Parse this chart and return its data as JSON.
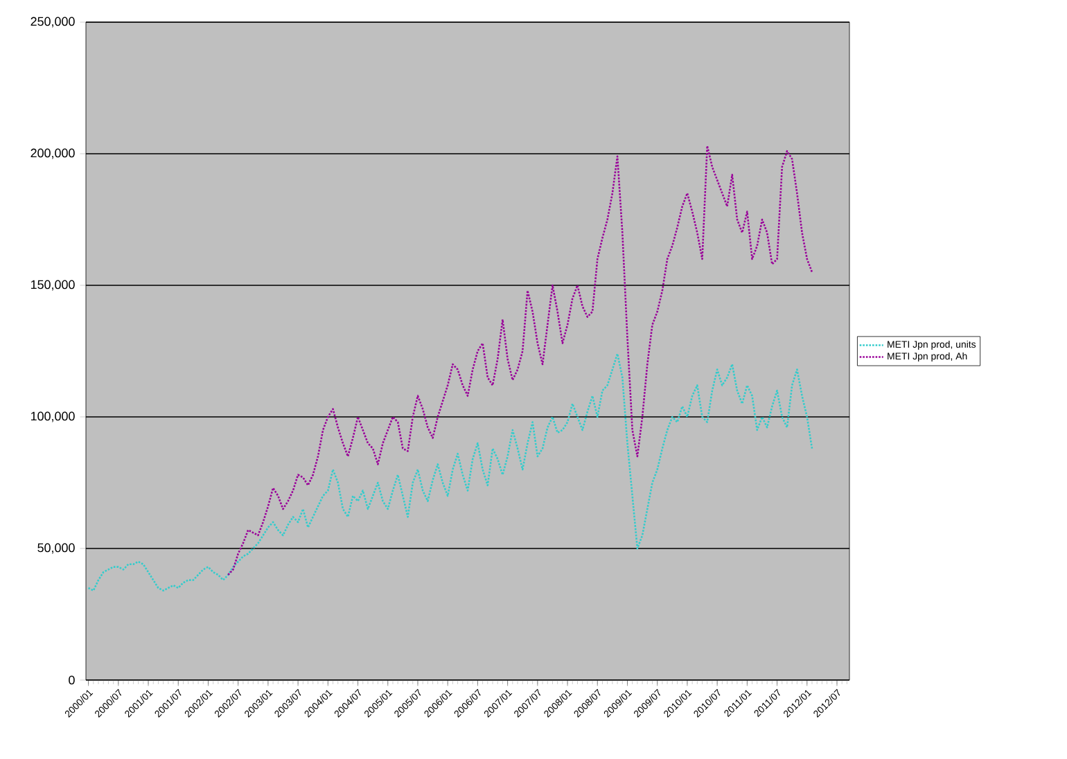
{
  "chart_data": {
    "type": "line",
    "categories": [
      "2000/01",
      null,
      null,
      null,
      null,
      null,
      "2000/07",
      null,
      null,
      null,
      null,
      null,
      "2001/01",
      null,
      null,
      null,
      null,
      null,
      "2001/07",
      null,
      null,
      null,
      null,
      null,
      "2002/01",
      null,
      null,
      null,
      null,
      null,
      "2002/07",
      null,
      null,
      null,
      null,
      null,
      "2003/01",
      null,
      null,
      null,
      null,
      null,
      "2003/07",
      null,
      null,
      null,
      null,
      null,
      "2004/01",
      null,
      null,
      null,
      null,
      null,
      "2004/07",
      null,
      null,
      null,
      null,
      null,
      "2005/01",
      null,
      null,
      null,
      null,
      null,
      "2005/07",
      null,
      null,
      null,
      null,
      null,
      "2006/01",
      null,
      null,
      null,
      null,
      null,
      "2006/07",
      null,
      null,
      null,
      null,
      null,
      "2007/01",
      null,
      null,
      null,
      null,
      null,
      "2007/07",
      null,
      null,
      null,
      null,
      null,
      "2008/01",
      null,
      null,
      null,
      null,
      null,
      "2008/07",
      null,
      null,
      null,
      null,
      null,
      "2009/01",
      null,
      null,
      null,
      null,
      null,
      "2009/07",
      null,
      null,
      null,
      null,
      null,
      "2010/01",
      null,
      null,
      null,
      null,
      null,
      "2010/07",
      null,
      null,
      null,
      null,
      null,
      "2011/01",
      null,
      null,
      null,
      null,
      null,
      "2011/07",
      null,
      null,
      null,
      null,
      null,
      "2012/01",
      null,
      null,
      null,
      null,
      null,
      "2012/07",
      null,
      null
    ],
    "series": [
      {
        "name": "METI Jpn prod, units",
        "color": "#33cccc",
        "values": [
          35000,
          34000,
          38000,
          41000,
          42000,
          43000,
          43000,
          42000,
          44000,
          44000,
          45000,
          44000,
          41000,
          38000,
          35000,
          34000,
          35000,
          36000,
          35000,
          37000,
          38000,
          38000,
          40000,
          42000,
          43000,
          41000,
          40000,
          38000,
          40000,
          43000,
          45000,
          47000,
          48000,
          50000,
          52000,
          55000,
          58000,
          60000,
          57000,
          55000,
          59000,
          62000,
          60000,
          65000,
          58000,
          62000,
          66000,
          70000,
          72000,
          80000,
          75000,
          65000,
          62000,
          70000,
          68000,
          72000,
          65000,
          70000,
          75000,
          68000,
          65000,
          72000,
          78000,
          70000,
          62000,
          75000,
          80000,
          72000,
          68000,
          76000,
          82000,
          75000,
          70000,
          80000,
          86000,
          78000,
          72000,
          84000,
          90000,
          80000,
          74000,
          88000,
          84000,
          78000,
          85000,
          95000,
          88000,
          80000,
          90000,
          98000,
          85000,
          88000,
          96000,
          100000,
          94000,
          95000,
          98000,
          105000,
          100000,
          95000,
          102000,
          108000,
          100000,
          110000,
          112000,
          118000,
          124000,
          115000,
          90000,
          70000,
          50000,
          55000,
          65000,
          75000,
          80000,
          88000,
          95000,
          100000,
          98000,
          104000,
          100000,
          108000,
          112000,
          100000,
          98000,
          110000,
          118000,
          112000,
          115000,
          120000,
          110000,
          105000,
          112000,
          108000,
          95000,
          100000,
          96000,
          104000,
          110000,
          100000,
          96000,
          112000,
          118000,
          108000,
          100000,
          88000,
          null,
          null,
          null,
          null,
          null,
          null,
          null
        ]
      },
      {
        "name": "METI Jpn prod, Ah",
        "color": "#990099",
        "values": [
          null,
          null,
          null,
          null,
          null,
          null,
          null,
          null,
          null,
          null,
          null,
          null,
          null,
          null,
          null,
          null,
          null,
          null,
          null,
          null,
          null,
          null,
          null,
          null,
          null,
          null,
          null,
          null,
          40000,
          42000,
          48000,
          52000,
          57000,
          56000,
          55000,
          60000,
          66000,
          73000,
          70000,
          65000,
          68000,
          72000,
          78000,
          77000,
          74000,
          78000,
          85000,
          95000,
          100000,
          103000,
          96000,
          90000,
          85000,
          92000,
          100000,
          95000,
          90000,
          88000,
          82000,
          90000,
          95000,
          100000,
          98000,
          88000,
          87000,
          100000,
          108000,
          103000,
          96000,
          92000,
          100000,
          106000,
          112000,
          120000,
          118000,
          112000,
          108000,
          118000,
          125000,
          128000,
          115000,
          112000,
          122000,
          137000,
          122000,
          114000,
          118000,
          125000,
          148000,
          140000,
          128000,
          120000,
          135000,
          150000,
          140000,
          128000,
          135000,
          145000,
          150000,
          142000,
          138000,
          140000,
          160000,
          168000,
          175000,
          185000,
          199000,
          170000,
          130000,
          95000,
          85000,
          100000,
          120000,
          135000,
          140000,
          148000,
          160000,
          165000,
          172000,
          180000,
          185000,
          178000,
          170000,
          160000,
          203000,
          195000,
          190000,
          185000,
          180000,
          192000,
          175000,
          170000,
          178000,
          160000,
          165000,
          175000,
          170000,
          158000,
          160000,
          195000,
          201000,
          198000,
          185000,
          170000,
          160000,
          155000,
          null,
          null,
          null,
          null,
          null,
          null,
          null
        ]
      }
    ],
    "ylim": [
      0,
      250000
    ],
    "yticks": [
      0,
      {
        "value": 50000,
        "label": "50,000"
      },
      {
        "value": 100000,
        "label": "100,000"
      },
      {
        "value": 150000,
        "label": "150,000"
      },
      {
        "value": 200000,
        "label": "200,000"
      },
      {
        "value": 250000,
        "label": "250,000"
      }
    ],
    "grid": "y",
    "legend": "right",
    "marker": "none",
    "line_style": "dotted"
  }
}
